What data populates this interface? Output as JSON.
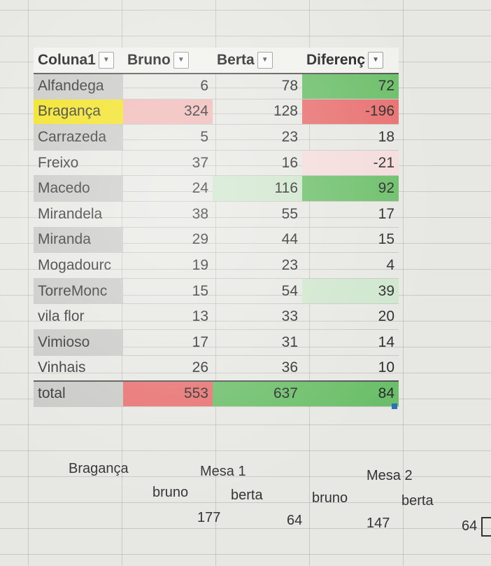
{
  "table": {
    "headers": [
      "Coluna1",
      "Bruno",
      "Berta",
      "Diferenç"
    ],
    "filter_icon": "chevron-down-icon",
    "rows": [
      {
        "name": "Alfandega",
        "bruno": "6",
        "berta": "78",
        "diff": "72"
      },
      {
        "name": "Bragança",
        "bruno": "324",
        "berta": "128",
        "diff": "-196"
      },
      {
        "name": "Carrazeda",
        "bruno": "5",
        "berta": "23",
        "diff": "18"
      },
      {
        "name": "Freixo",
        "bruno": "37",
        "berta": "16",
        "diff": "-21"
      },
      {
        "name": "Macedo",
        "bruno": "24",
        "berta": "116",
        "diff": "92"
      },
      {
        "name": "Mirandela",
        "bruno": "38",
        "berta": "55",
        "diff": "17"
      },
      {
        "name": "Miranda",
        "bruno": "29",
        "berta": "44",
        "diff": "15"
      },
      {
        "name": "Mogadourc",
        "bruno": "19",
        "berta": "23",
        "diff": "4"
      },
      {
        "name": "TorreMonc",
        "bruno": "15",
        "berta": "54",
        "diff": "39"
      },
      {
        "name": "vila flor",
        "bruno": "13",
        "berta": "33",
        "diff": "20"
      },
      {
        "name": "Vimioso",
        "bruno": "17",
        "berta": "31",
        "diff": "14"
      },
      {
        "name": "Vinhais",
        "bruno": "26",
        "berta": "36",
        "diff": "10"
      }
    ],
    "total": {
      "name": "total",
      "bruno": "553",
      "berta": "637",
      "diff": "84"
    }
  },
  "lower": {
    "location": "Bragança",
    "mesa1": {
      "title": "Mesa 1",
      "bruno_label": "bruno",
      "berta_label": "berta",
      "bruno_value": "177",
      "berta_value": "64"
    },
    "mesa2": {
      "title": "Mesa 2",
      "bruno_label": "bruno",
      "berta_label": "berta",
      "bruno_value": "147",
      "berta_value": "64"
    }
  },
  "colors": {
    "green": "#6cbf6a",
    "red": "#e87070",
    "pink": "#f0b8b6",
    "yellow": "#f2e21f"
  }
}
